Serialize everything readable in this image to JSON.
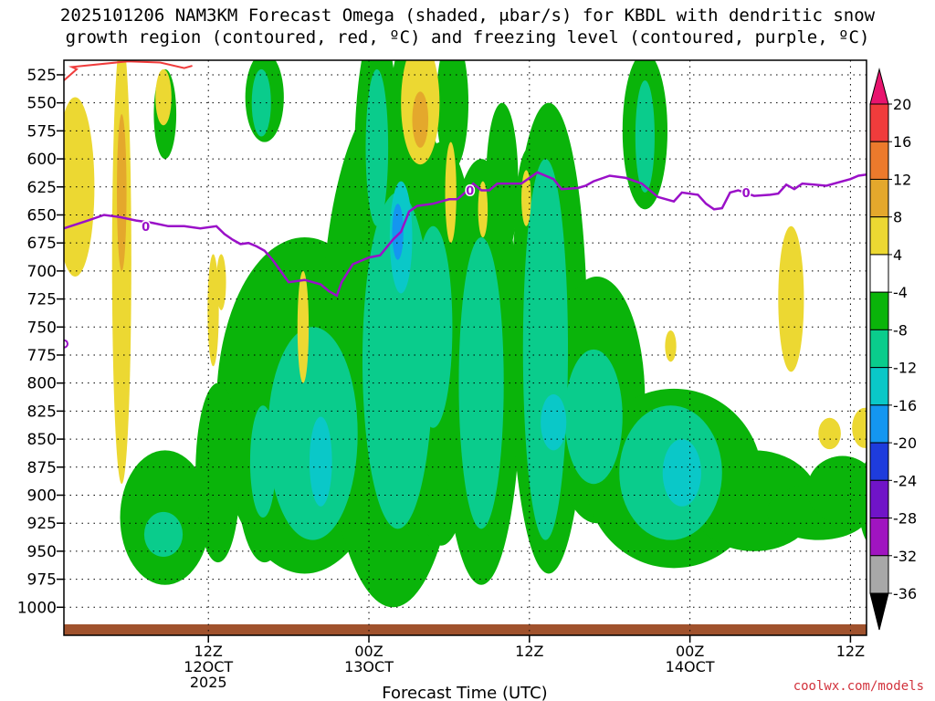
{
  "chart_data": {
    "type": "heatmap",
    "title_line1": "2025101206 NAM3KM Forecast Omega (shaded, μbar/s) for KBDL with dendritic snow",
    "title_line2": "growth region (contoured, red, ºC) and freezing level (contoured, purple, ºC)",
    "xlabel": "Forecast Time (UTC)",
    "credit": "coolwx.com/models",
    "y_axis": {
      "ticks": [
        525,
        550,
        575,
        600,
        625,
        650,
        675,
        700,
        725,
        750,
        775,
        800,
        825,
        850,
        875,
        900,
        925,
        950,
        975,
        1000
      ],
      "range": [
        512,
        1025
      ]
    },
    "x_axis": {
      "range_hours": [
        -3,
        47
      ],
      "ticks": [
        {
          "hour": 6,
          "line1": "12Z",
          "line2": "12OCT",
          "line3": "2025"
        },
        {
          "hour": 16,
          "line1": "00Z",
          "line2": "13OCT",
          "line3": ""
        },
        {
          "hour": 26,
          "line1": "12Z",
          "line2": "",
          "line3": ""
        },
        {
          "hour": 36,
          "line1": "00Z",
          "line2": "14OCT",
          "line3": ""
        },
        {
          "hour": 46,
          "line1": "12Z",
          "line2": "",
          "line3": ""
        }
      ]
    },
    "colorbar": {
      "labels": [
        "20",
        "16",
        "12",
        "8",
        "4",
        "-4",
        "-8",
        "-12",
        "-16",
        "-20",
        "-24",
        "-28",
        "-32",
        "-36"
      ],
      "colors": [
        "#e8146e",
        "#f03c3c",
        "#ec7a2c",
        "#e4a82c",
        "#ecd832",
        "#ffffff",
        "#0ab40a",
        "#0acc8c",
        "#0ac8c8",
        "#1496f0",
        "#1e3cdc",
        "#7014c8",
        "#a014c0",
        "#a8a8a8",
        "#000000"
      ]
    },
    "freezing_level": {
      "label": "0",
      "color": "#9a10c8",
      "points": [
        [
          -3,
          662
        ],
        [
          -1.5,
          655
        ],
        [
          -0.5,
          650
        ],
        [
          0.5,
          652
        ],
        [
          1.5,
          655
        ],
        [
          2.5,
          657
        ],
        [
          3.5,
          660
        ],
        [
          4.5,
          660
        ],
        [
          5.5,
          662
        ],
        [
          6.5,
          660
        ],
        [
          7,
          667
        ],
        [
          7.5,
          672
        ],
        [
          8,
          676
        ],
        [
          8.5,
          675
        ],
        [
          9,
          678
        ],
        [
          9.5,
          682
        ],
        [
          10,
          690
        ],
        [
          10.5,
          700
        ],
        [
          11,
          710
        ],
        [
          12,
          708
        ],
        [
          13,
          712
        ],
        [
          13.5,
          718
        ],
        [
          14,
          722
        ],
        [
          14.3,
          710
        ],
        [
          15,
          694
        ],
        [
          16,
          688
        ],
        [
          16.7,
          686
        ],
        [
          17.5,
          672
        ],
        [
          18,
          665
        ],
        [
          18.5,
          647
        ],
        [
          19,
          642
        ],
        [
          20,
          640
        ],
        [
          21,
          636
        ],
        [
          21.5,
          636
        ],
        [
          22,
          630
        ],
        [
          22.5,
          622
        ],
        [
          23,
          628
        ],
        [
          23.5,
          628
        ],
        [
          24,
          622
        ],
        [
          25.5,
          622
        ],
        [
          26.5,
          612
        ],
        [
          27.5,
          618
        ],
        [
          28,
          627
        ],
        [
          29,
          626
        ],
        [
          29.5,
          624
        ],
        [
          30,
          620
        ],
        [
          31,
          615
        ],
        [
          32,
          617
        ],
        [
          33,
          622
        ],
        [
          34,
          634
        ],
        [
          35,
          638
        ],
        [
          35.5,
          630
        ],
        [
          36.5,
          632
        ],
        [
          37,
          640
        ],
        [
          37.5,
          645
        ],
        [
          38,
          644
        ],
        [
          38.5,
          630
        ],
        [
          39,
          628
        ],
        [
          40,
          633
        ],
        [
          41,
          632
        ],
        [
          41.5,
          631
        ],
        [
          42,
          623
        ],
        [
          42.5,
          627
        ],
        [
          43,
          622
        ],
        [
          44.5,
          624
        ],
        [
          46,
          618
        ],
        [
          46.5,
          615
        ],
        [
          47,
          614
        ],
        [
          47.5,
          616
        ],
        [
          48,
          617
        ]
      ]
    },
    "dgz": {
      "color": "#f03c3c",
      "points": [
        [
          -3,
          530
        ],
        [
          -2.2,
          520
        ],
        [
          -2.5,
          518
        ],
        [
          1,
          513
        ],
        [
          3,
          514
        ],
        [
          4.5,
          519
        ],
        [
          5,
          517
        ]
      ]
    },
    "regions": [
      {
        "v": -6,
        "cx": 12,
        "cy": 820,
        "rx": 5.5,
        "ry": 150
      },
      {
        "v": -6,
        "cx": 17.5,
        "cy": 770,
        "rx": 4.5,
        "ry": 230
      },
      {
        "v": -6,
        "cx": 20.5,
        "cy": 765,
        "rx": 2.5,
        "ry": 180
      },
      {
        "v": -6,
        "cx": 23,
        "cy": 790,
        "rx": 2.5,
        "ry": 190
      },
      {
        "v": -6,
        "cx": 27.2,
        "cy": 760,
        "rx": 2.4,
        "ry": 210
      },
      {
        "v": -6,
        "cx": 30.2,
        "cy": 815,
        "rx": 3.0,
        "ry": 110
      },
      {
        "v": -6,
        "cx": 35,
        "cy": 885,
        "rx": 5.5,
        "ry": 80
      },
      {
        "v": -6,
        "cx": 40,
        "cy": 905,
        "rx": 4,
        "ry": 45
      },
      {
        "v": -6,
        "cx": 44,
        "cy": 915,
        "rx": 3.2,
        "ry": 25
      },
      {
        "v": -6,
        "cx": 3.3,
        "cy": 920,
        "rx": 2.8,
        "ry": 60
      },
      {
        "v": -6,
        "cx": 6.6,
        "cy": 880,
        "rx": 1.4,
        "ry": 80
      },
      {
        "v": -6,
        "cx": 9.5,
        "cy": 870,
        "rx": 1.8,
        "ry": 90
      },
      {
        "v": -6,
        "cx": 16.5,
        "cy": 600,
        "rx": 1.4,
        "ry": 120
      },
      {
        "v": -6,
        "cx": 18.5,
        "cy": 560,
        "rx": 1.2,
        "ry": 70
      },
      {
        "v": -6,
        "cx": 21.2,
        "cy": 550,
        "rx": 1.0,
        "ry": 60
      },
      {
        "v": -6,
        "cx": 24.3,
        "cy": 620,
        "rx": 1.0,
        "ry": 70
      },
      {
        "v": -6,
        "cx": 26,
        "cy": 640,
        "rx": 0.8,
        "ry": 50
      },
      {
        "v": -6,
        "cx": 33.2,
        "cy": 575,
        "rx": 1.4,
        "ry": 70
      },
      {
        "v": -6,
        "cx": 9.5,
        "cy": 545,
        "rx": 1.2,
        "ry": 40
      },
      {
        "v": -6,
        "cx": 3.3,
        "cy": 560,
        "rx": 0.7,
        "ry": 40
      },
      {
        "v": -6,
        "cx": 45.5,
        "cy": 895,
        "rx": 2.2,
        "ry": 30
      },
      {
        "v": -6,
        "cx": 47.4,
        "cy": 905,
        "rx": 0.9,
        "ry": 40
      },
      {
        "v": -10,
        "cx": 12.5,
        "cy": 845,
        "rx": 2.8,
        "ry": 95
      },
      {
        "v": -10,
        "cx": 17.8,
        "cy": 780,
        "rx": 2.2,
        "ry": 150
      },
      {
        "v": -10,
        "cx": 20,
        "cy": 750,
        "rx": 1.2,
        "ry": 90
      },
      {
        "v": -10,
        "cx": 23,
        "cy": 800,
        "rx": 1.4,
        "ry": 130
      },
      {
        "v": -10,
        "cx": 27,
        "cy": 770,
        "rx": 1.4,
        "ry": 170
      },
      {
        "v": -10,
        "cx": 30,
        "cy": 830,
        "rx": 1.8,
        "ry": 60
      },
      {
        "v": -10,
        "cx": 34.8,
        "cy": 880,
        "rx": 3.2,
        "ry": 60
      },
      {
        "v": -10,
        "cx": 3.2,
        "cy": 935,
        "rx": 1.2,
        "ry": 20
      },
      {
        "v": -10,
        "cx": 9.4,
        "cy": 870,
        "rx": 0.8,
        "ry": 50
      },
      {
        "v": -10,
        "cx": 16.5,
        "cy": 590,
        "rx": 0.7,
        "ry": 70
      },
      {
        "v": -10,
        "cx": 9.3,
        "cy": 550,
        "rx": 0.6,
        "ry": 30
      },
      {
        "v": -10,
        "cx": 33.2,
        "cy": 580,
        "rx": 0.6,
        "ry": 50
      },
      {
        "v": -14,
        "cx": 35.5,
        "cy": 880,
        "rx": 1.2,
        "ry": 30
      },
      {
        "v": -14,
        "cx": 18,
        "cy": 670,
        "rx": 0.7,
        "ry": 50
      },
      {
        "v": -14,
        "cx": 27.5,
        "cy": 835,
        "rx": 0.8,
        "ry": 25
      },
      {
        "v": -14,
        "cx": 13,
        "cy": 870,
        "rx": 0.7,
        "ry": 40
      },
      {
        "v": -18,
        "cx": 17.8,
        "cy": 665,
        "rx": 0.35,
        "ry": 25
      },
      {
        "v": 6,
        "cx": -2.3,
        "cy": 625,
        "rx": 1.2,
        "ry": 80
      },
      {
        "v": 6,
        "cx": 0.6,
        "cy": 690,
        "rx": 0.6,
        "ry": 200
      },
      {
        "v": 6,
        "cx": 3.2,
        "cy": 545,
        "rx": 0.5,
        "ry": 25
      },
      {
        "v": 6,
        "cx": 6.3,
        "cy": 735,
        "rx": 0.35,
        "ry": 50
      },
      {
        "v": 6,
        "cx": 11.9,
        "cy": 750,
        "rx": 0.35,
        "ry": 50
      },
      {
        "v": 6,
        "cx": 19.2,
        "cy": 550,
        "rx": 1.2,
        "ry": 55
      },
      {
        "v": 6,
        "cx": 21.1,
        "cy": 630,
        "rx": 0.35,
        "ry": 45
      },
      {
        "v": 6,
        "cx": 23.1,
        "cy": 645,
        "rx": 0.3,
        "ry": 25
      },
      {
        "v": 6,
        "cx": 25.8,
        "cy": 635,
        "rx": 0.3,
        "ry": 25
      },
      {
        "v": 6,
        "cx": 42.3,
        "cy": 725,
        "rx": 0.8,
        "ry": 65
      },
      {
        "v": 6,
        "cx": 44.7,
        "cy": 845,
        "rx": 0.7,
        "ry": 14
      },
      {
        "v": 6,
        "cx": 46.9,
        "cy": 840,
        "rx": 0.8,
        "ry": 18
      },
      {
        "v": 6,
        "cx": 34.8,
        "cy": 767,
        "rx": 0.35,
        "ry": 14
      },
      {
        "v": 6,
        "cx": 6.8,
        "cy": 710,
        "rx": 0.3,
        "ry": 25
      },
      {
        "v": 10,
        "cx": 0.6,
        "cy": 630,
        "rx": 0.3,
        "ry": 70
      },
      {
        "v": 10,
        "cx": 19.2,
        "cy": 565,
        "rx": 0.5,
        "ry": 25
      }
    ]
  }
}
